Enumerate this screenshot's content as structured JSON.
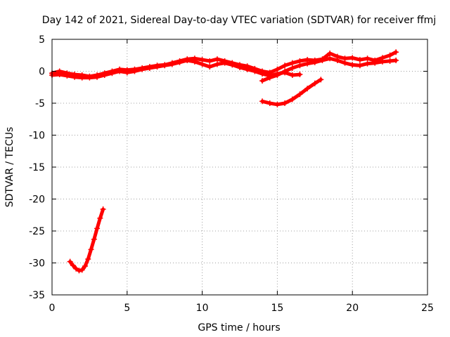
{
  "chart_data": {
    "type": "scatter",
    "title": "Day 142 of 2021, Sidereal Day-to-day VTEC variation (SDTVAR) for receiver ffmj",
    "xlabel": "GPS time / hours",
    "ylabel": "SDTVAR / TECUs",
    "xlim": [
      0,
      25
    ],
    "ylim": [
      -35,
      5
    ],
    "xticks": [
      0,
      5,
      10,
      15,
      20,
      25
    ],
    "yticks": [
      5,
      0,
      -5,
      -10,
      -15,
      -20,
      -25,
      -30,
      -35
    ],
    "grid": true,
    "legend": "none",
    "marker": "plus",
    "color": "#ff0000",
    "series": [
      {
        "name": "arc-1",
        "x": [
          0.0,
          0.5,
          1.0,
          1.5,
          2.0,
          2.5,
          3.0,
          3.5,
          4.0,
          4.5,
          5.0,
          5.5,
          6.0,
          6.5,
          7.0,
          7.5,
          8.0,
          8.5,
          9.0,
          9.5,
          10.0,
          10.5,
          11.0,
          11.5,
          12.0,
          12.5,
          13.0,
          13.5,
          14.0,
          14.5,
          15.0,
          15.5,
          16.0,
          16.5,
          17.0,
          17.5,
          18.0,
          18.5,
          19.0,
          19.5,
          20.0,
          20.5,
          21.0,
          21.5,
          22.0,
          22.5,
          22.9
        ],
        "y": [
          -0.3,
          0.0,
          -0.3,
          -0.5,
          -0.6,
          -0.8,
          -0.6,
          -0.3,
          0.0,
          0.3,
          0.2,
          0.3,
          0.5,
          0.7,
          0.9,
          1.0,
          1.3,
          1.6,
          1.9,
          2.0,
          1.8,
          1.6,
          1.9,
          1.6,
          1.3,
          1.0,
          0.8,
          0.4,
          0.0,
          -0.2,
          0.3,
          0.9,
          1.3,
          1.6,
          1.8,
          1.7,
          1.9,
          2.8,
          2.3,
          2.0,
          2.1,
          1.8,
          2.0,
          1.7,
          2.1,
          2.5,
          3.0
        ]
      },
      {
        "name": "arc-2",
        "x": [
          0.0,
          0.5,
          1.0,
          1.5,
          2.0,
          2.5,
          3.0,
          3.5,
          4.0,
          4.5,
          5.0,
          5.5,
          6.0,
          6.5,
          7.0,
          7.5,
          8.0,
          8.5,
          9.0,
          9.5,
          10.0,
          10.5,
          11.0,
          11.5,
          12.0,
          12.5,
          13.0,
          13.5,
          14.0,
          14.5,
          15.0,
          15.5,
          16.0,
          16.5
        ],
        "y": [
          -0.6,
          -0.5,
          -0.7,
          -0.9,
          -1.0,
          -1.0,
          -0.9,
          -0.6,
          -0.3,
          0.0,
          -0.2,
          0.0,
          0.3,
          0.5,
          0.7,
          0.9,
          1.1,
          1.4,
          1.7,
          1.5,
          1.1,
          0.7,
          1.1,
          1.3,
          1.0,
          0.6,
          0.3,
          0.0,
          -0.4,
          -0.7,
          -0.4,
          -0.2,
          -0.6,
          -0.5
        ]
      },
      {
        "name": "arc-3",
        "x": [
          14.0,
          14.5,
          15.0,
          15.5,
          16.0,
          16.5,
          17.0,
          17.5,
          18.0,
          18.5,
          19.0,
          19.5,
          20.0,
          20.5,
          21.0,
          21.5,
          22.0,
          22.5,
          22.9
        ],
        "y": [
          -1.5,
          -1.0,
          -0.6,
          0.0,
          0.5,
          0.9,
          1.2,
          1.4,
          1.7,
          2.0,
          1.7,
          1.3,
          1.0,
          0.9,
          1.2,
          1.3,
          1.5,
          1.6,
          1.7
        ]
      },
      {
        "name": "arc-4",
        "x": [
          14.0,
          14.5,
          15.0,
          15.5,
          16.0,
          16.5,
          17.0,
          17.5,
          17.9
        ],
        "y": [
          -4.7,
          -5.0,
          -5.2,
          -5.0,
          -4.4,
          -3.6,
          -2.7,
          -1.9,
          -1.3
        ]
      },
      {
        "name": "arc-5",
        "x": [
          1.2,
          1.4,
          1.6,
          1.8,
          2.0,
          2.2,
          2.4,
          2.6,
          2.8,
          3.0,
          3.2,
          3.4
        ],
        "y": [
          -29.8,
          -30.4,
          -30.9,
          -31.2,
          -31.1,
          -30.5,
          -29.4,
          -27.9,
          -26.3,
          -24.6,
          -23.0,
          -21.6
        ]
      }
    ]
  }
}
